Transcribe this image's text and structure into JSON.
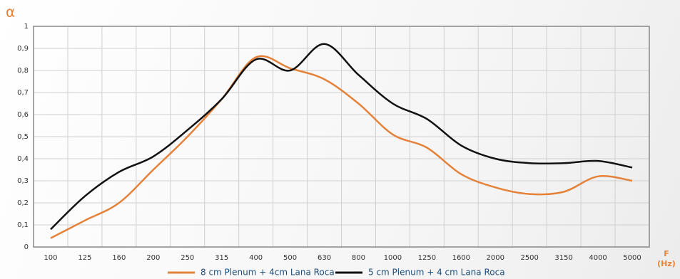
{
  "chart_data": {
    "type": "line",
    "y_label": "α",
    "x_label": "F (Hz)",
    "categories": [
      "100",
      "125",
      "160",
      "200",
      "250",
      "315",
      "400",
      "500",
      "630",
      "800",
      "1000",
      "1250",
      "1600",
      "2000",
      "2500",
      "3150",
      "4000",
      "5000"
    ],
    "series": [
      {
        "name": "8 cm Plenum + 4cm Lana Roca",
        "color": "#e5823a",
        "values": [
          0.04,
          0.12,
          0.2,
          0.35,
          0.5,
          0.67,
          0.86,
          0.81,
          0.76,
          0.65,
          0.51,
          0.45,
          0.33,
          0.27,
          0.24,
          0.25,
          0.32,
          0.3
        ]
      },
      {
        "name": "5 cm Plenum + 4 cm Lana Roca",
        "color": "#111111",
        "values": [
          0.08,
          0.23,
          0.34,
          0.41,
          0.53,
          0.67,
          0.85,
          0.8,
          0.92,
          0.78,
          0.65,
          0.58,
          0.46,
          0.4,
          0.38,
          0.38,
          0.39,
          0.36
        ]
      }
    ],
    "ylim": [
      0,
      1
    ],
    "yticks": [
      0,
      {
        "value": 0.1,
        "label": "0,1"
      },
      {
        "value": 0.2,
        "label": "0,2"
      },
      {
        "value": 0.3,
        "label": "0,3"
      },
      {
        "value": 0.4,
        "label": "0,4"
      },
      {
        "value": 0.5,
        "label": "0,5"
      },
      {
        "value": 0.6,
        "label": "0,6"
      },
      {
        "value": 0.7,
        "label": "0,7"
      },
      {
        "value": 0.8,
        "label": "0,8"
      },
      {
        "value": 0.9,
        "label": "0,9"
      },
      1
    ],
    "grid": true
  }
}
